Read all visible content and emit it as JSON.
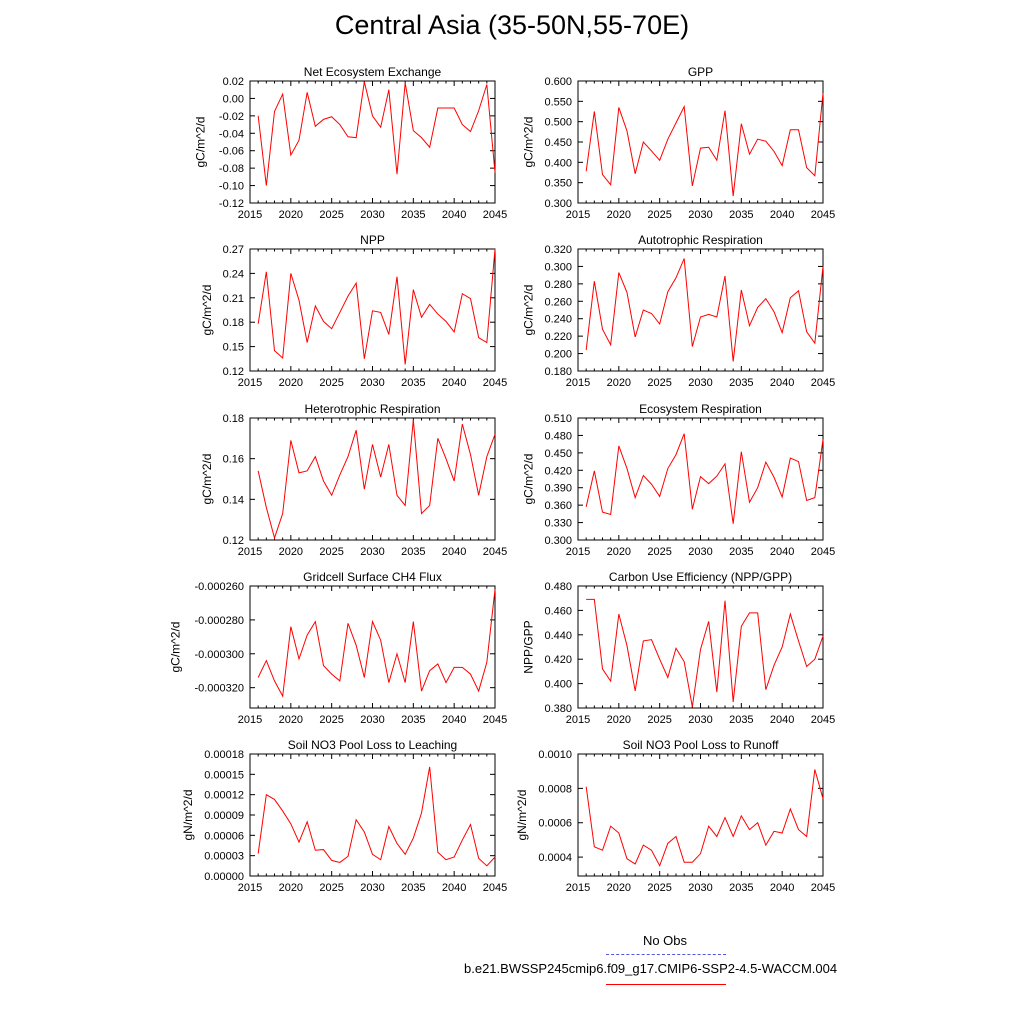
{
  "title": "Central Asia (35-50N,55-70E)",
  "legend": {
    "obs_label": "No Obs",
    "obs_color": "#5555dd",
    "case_label": "b.e21.BWSSP245cmip6.f09_g17.CMIP6-SSP2-4.5-WACCM.004",
    "case_color": "#ff0000"
  },
  "chart_data": [
    {
      "type": "line",
      "title": "Net Ecosystem Exchange",
      "ylabel": "gC/m^2/d",
      "xlim": [
        2015,
        2045
      ],
      "ylim": [
        -0.12,
        0.02
      ],
      "xticks": [
        2015,
        2020,
        2025,
        2030,
        2035,
        2040,
        2045
      ],
      "yticks": [
        -0.12,
        -0.1,
        -0.08,
        -0.06,
        -0.04,
        -0.02,
        0.0,
        0.02
      ],
      "ytick_labels": [
        "-0.12",
        "-0.10",
        "-0.08",
        "-0.06",
        "-0.04",
        "-0.02",
        "0.00",
        "0.02"
      ],
      "x": [
        2016,
        2017,
        2018,
        2019,
        2020,
        2021,
        2022,
        2023,
        2024,
        2025,
        2026,
        2027,
        2028,
        2029,
        2030,
        2031,
        2032,
        2033,
        2034,
        2035,
        2036,
        2037,
        2038,
        2039,
        2040,
        2041,
        2042,
        2043,
        2044,
        2045
      ],
      "y": [
        -0.02,
        -0.1,
        -0.015,
        0.005,
        -0.065,
        -0.048,
        0.007,
        -0.032,
        -0.024,
        -0.021,
        -0.03,
        -0.044,
        -0.045,
        0.019,
        -0.02,
        -0.033,
        0.01,
        -0.087,
        0.018,
        -0.037,
        -0.045,
        -0.056,
        -0.011,
        -0.011,
        -0.011,
        -0.03,
        -0.038,
        -0.014,
        0.016,
        -0.085
      ],
      "color": "#ff0000"
    },
    {
      "type": "line",
      "title": "GPP",
      "ylabel": "gC/m^2/d",
      "xlim": [
        2015,
        2045
      ],
      "ylim": [
        0.3,
        0.6
      ],
      "xticks": [
        2015,
        2020,
        2025,
        2030,
        2035,
        2040,
        2045
      ],
      "yticks": [
        0.3,
        0.35,
        0.4,
        0.45,
        0.5,
        0.55,
        0.6
      ],
      "ytick_labels": [
        "0.300",
        "0.350",
        "0.400",
        "0.450",
        "0.500",
        "0.550",
        "0.600"
      ],
      "x": [
        2016,
        2017,
        2018,
        2019,
        2020,
        2021,
        2022,
        2023,
        2024,
        2025,
        2026,
        2027,
        2028,
        2029,
        2030,
        2031,
        2032,
        2033,
        2034,
        2035,
        2036,
        2037,
        2038,
        2039,
        2040,
        2041,
        2042,
        2043,
        2044,
        2045
      ],
      "y": [
        0.378,
        0.525,
        0.37,
        0.345,
        0.535,
        0.477,
        0.372,
        0.45,
        0.428,
        0.405,
        0.457,
        0.497,
        0.537,
        0.342,
        0.435,
        0.437,
        0.405,
        0.527,
        0.317,
        0.495,
        0.42,
        0.457,
        0.452,
        0.427,
        0.392,
        0.48,
        0.48,
        0.387,
        0.367,
        0.57
      ],
      "color": "#ff0000"
    },
    {
      "type": "line",
      "title": "NPP",
      "ylabel": "gC/m^2/d",
      "xlim": [
        2015,
        2045
      ],
      "ylim": [
        0.12,
        0.27
      ],
      "xticks": [
        2015,
        2020,
        2025,
        2030,
        2035,
        2040,
        2045
      ],
      "yticks": [
        0.12,
        0.15,
        0.18,
        0.21,
        0.24,
        0.27
      ],
      "ytick_labels": [
        "0.12",
        "0.15",
        "0.18",
        "0.21",
        "0.24",
        "0.27"
      ],
      "x": [
        2016,
        2017,
        2018,
        2019,
        2020,
        2021,
        2022,
        2023,
        2024,
        2025,
        2026,
        2027,
        2028,
        2029,
        2030,
        2031,
        2032,
        2033,
        2034,
        2035,
        2036,
        2037,
        2038,
        2039,
        2040,
        2041,
        2042,
        2043,
        2044,
        2045
      ],
      "y": [
        0.178,
        0.242,
        0.145,
        0.136,
        0.24,
        0.207,
        0.155,
        0.2,
        0.181,
        0.172,
        0.192,
        0.212,
        0.228,
        0.135,
        0.194,
        0.192,
        0.165,
        0.236,
        0.128,
        0.22,
        0.186,
        0.202,
        0.19,
        0.181,
        0.168,
        0.215,
        0.209,
        0.161,
        0.155,
        0.27
      ],
      "color": "#ff0000"
    },
    {
      "type": "line",
      "title": "Autotrophic Respiration",
      "ylabel": "gC/m^2/d",
      "xlim": [
        2015,
        2045
      ],
      "ylim": [
        0.18,
        0.32
      ],
      "xticks": [
        2015,
        2020,
        2025,
        2030,
        2035,
        2040,
        2045
      ],
      "yticks": [
        0.18,
        0.2,
        0.22,
        0.24,
        0.26,
        0.28,
        0.3,
        0.32
      ],
      "ytick_labels": [
        "0.180",
        "0.200",
        "0.220",
        "0.240",
        "0.260",
        "0.280",
        "0.300",
        "0.320"
      ],
      "x": [
        2016,
        2017,
        2018,
        2019,
        2020,
        2021,
        2022,
        2023,
        2024,
        2025,
        2026,
        2027,
        2028,
        2029,
        2030,
        2031,
        2032,
        2033,
        2034,
        2035,
        2036,
        2037,
        2038,
        2039,
        2040,
        2041,
        2042,
        2043,
        2044,
        2045
      ],
      "y": [
        0.204,
        0.283,
        0.228,
        0.21,
        0.293,
        0.27,
        0.219,
        0.25,
        0.246,
        0.234,
        0.271,
        0.287,
        0.309,
        0.208,
        0.242,
        0.245,
        0.242,
        0.289,
        0.191,
        0.273,
        0.232,
        0.253,
        0.263,
        0.248,
        0.224,
        0.264,
        0.272,
        0.225,
        0.212,
        0.3
      ],
      "color": "#ff0000"
    },
    {
      "type": "line",
      "title": "Heterotrophic Respiration",
      "ylabel": "gC/m^2/d",
      "xlim": [
        2015,
        2045
      ],
      "ylim": [
        0.12,
        0.18
      ],
      "xticks": [
        2015,
        2020,
        2025,
        2030,
        2035,
        2040,
        2045
      ],
      "yticks": [
        0.12,
        0.14,
        0.16,
        0.18
      ],
      "ytick_labels": [
        "0.12",
        "0.14",
        "0.16",
        "0.18"
      ],
      "x": [
        2016,
        2017,
        2018,
        2019,
        2020,
        2021,
        2022,
        2023,
        2024,
        2025,
        2026,
        2027,
        2028,
        2029,
        2030,
        2031,
        2032,
        2033,
        2034,
        2035,
        2036,
        2037,
        2038,
        2039,
        2040,
        2041,
        2042,
        2043,
        2044,
        2045
      ],
      "y": [
        0.154,
        0.136,
        0.121,
        0.133,
        0.169,
        0.153,
        0.154,
        0.161,
        0.149,
        0.142,
        0.152,
        0.161,
        0.174,
        0.145,
        0.167,
        0.151,
        0.167,
        0.142,
        0.137,
        0.179,
        0.133,
        0.137,
        0.17,
        0.16,
        0.149,
        0.177,
        0.162,
        0.142,
        0.161,
        0.172
      ],
      "color": "#ff0000"
    },
    {
      "type": "line",
      "title": "Ecosystem Respiration",
      "ylabel": "gC/m^2/d",
      "xlim": [
        2015,
        2045
      ],
      "ylim": [
        0.3,
        0.51
      ],
      "xticks": [
        2015,
        2020,
        2025,
        2030,
        2035,
        2040,
        2045
      ],
      "yticks": [
        0.3,
        0.33,
        0.36,
        0.39,
        0.42,
        0.45,
        0.48,
        0.51
      ],
      "ytick_labels": [
        "0.300",
        "0.330",
        "0.360",
        "0.390",
        "0.420",
        "0.450",
        "0.480",
        "0.510"
      ],
      "x": [
        2016,
        2017,
        2018,
        2019,
        2020,
        2021,
        2022,
        2023,
        2024,
        2025,
        2026,
        2027,
        2028,
        2029,
        2030,
        2031,
        2032,
        2033,
        2034,
        2035,
        2036,
        2037,
        2038,
        2039,
        2040,
        2041,
        2042,
        2043,
        2044,
        2045
      ],
      "y": [
        0.357,
        0.419,
        0.348,
        0.344,
        0.462,
        0.423,
        0.373,
        0.411,
        0.396,
        0.375,
        0.423,
        0.447,
        0.483,
        0.353,
        0.409,
        0.397,
        0.41,
        0.431,
        0.328,
        0.452,
        0.365,
        0.39,
        0.434,
        0.408,
        0.374,
        0.441,
        0.435,
        0.368,
        0.373,
        0.473
      ],
      "color": "#ff0000"
    },
    {
      "type": "line",
      "title": "Gridcell Surface CH4 Flux",
      "ylabel": "gC/m^2/d",
      "xlim": [
        2015,
        2045
      ],
      "ylim": [
        -0.000332,
        -0.00026
      ],
      "xticks": [
        2015,
        2020,
        2025,
        2030,
        2035,
        2040,
        2045
      ],
      "yticks": [
        -0.00032,
        -0.0003,
        -0.00028,
        -0.00026
      ],
      "ytick_labels": [
        "-0.000320",
        "-0.000300",
        "-0.000280",
        "-0.000260"
      ],
      "x": [
        2016,
        2017,
        2018,
        2019,
        2020,
        2021,
        2022,
        2023,
        2024,
        2025,
        2026,
        2027,
        2028,
        2029,
        2030,
        2031,
        2032,
        2033,
        2034,
        2035,
        2036,
        2037,
        2038,
        2039,
        2040,
        2041,
        2042,
        2043,
        2044,
        2045
      ],
      "y": [
        -0.000314,
        -0.000304,
        -0.000316,
        -0.000325,
        -0.000284,
        -0.000303,
        -0.000289,
        -0.000281,
        -0.000307,
        -0.000312,
        -0.000316,
        -0.000282,
        -0.000295,
        -0.000314,
        -0.000281,
        -0.000292,
        -0.000317,
        -0.0003,
        -0.000317,
        -0.000281,
        -0.000322,
        -0.00031,
        -0.000306,
        -0.000317,
        -0.000308,
        -0.000308,
        -0.000312,
        -0.000322,
        -0.000305,
        -0.000262
      ],
      "color": "#ff0000"
    },
    {
      "type": "line",
      "title": "Carbon Use Efficiency (NPP/GPP)",
      "ylabel": "NPP/GPP",
      "xlim": [
        2015,
        2045
      ],
      "ylim": [
        0.38,
        0.48
      ],
      "xticks": [
        2015,
        2020,
        2025,
        2030,
        2035,
        2040,
        2045
      ],
      "yticks": [
        0.38,
        0.4,
        0.42,
        0.44,
        0.46,
        0.48
      ],
      "ytick_labels": [
        "0.380",
        "0.400",
        "0.420",
        "0.440",
        "0.460",
        "0.480"
      ],
      "x": [
        2016,
        2017,
        2018,
        2019,
        2020,
        2021,
        2022,
        2023,
        2024,
        2025,
        2026,
        2027,
        2028,
        2029,
        2030,
        2031,
        2032,
        2033,
        2034,
        2035,
        2036,
        2037,
        2038,
        2039,
        2040,
        2041,
        2042,
        2043,
        2044,
        2045
      ],
      "y": [
        0.469,
        0.469,
        0.412,
        0.402,
        0.457,
        0.431,
        0.394,
        0.435,
        0.436,
        0.42,
        0.405,
        0.429,
        0.418,
        0.381,
        0.428,
        0.451,
        0.393,
        0.468,
        0.385,
        0.447,
        0.458,
        0.458,
        0.395,
        0.415,
        0.43,
        0.457,
        0.435,
        0.414,
        0.42,
        0.439
      ],
      "color": "#ff0000"
    },
    {
      "type": "line",
      "title": "Soil NO3 Pool Loss to Leaching",
      "ylabel": "gN/m^2/d",
      "xlim": [
        2015,
        2045
      ],
      "ylim": [
        0.0,
        0.00018
      ],
      "xticks": [
        2015,
        2020,
        2025,
        2030,
        2035,
        2040,
        2045
      ],
      "yticks": [
        0.0,
        3e-05,
        6e-05,
        9e-05,
        0.00012,
        0.00015,
        0.00018
      ],
      "ytick_labels": [
        "0.00000",
        "0.00003",
        "0.00006",
        "0.00009",
        "0.00012",
        "0.00015",
        "0.00018"
      ],
      "x": [
        2016,
        2017,
        2018,
        2019,
        2020,
        2021,
        2022,
        2023,
        2024,
        2025,
        2026,
        2027,
        2028,
        2029,
        2030,
        2031,
        2032,
        2033,
        2034,
        2035,
        2036,
        2037,
        2038,
        2039,
        2040,
        2041,
        2042,
        2043,
        2044,
        2045
      ],
      "y": [
        3.3e-05,
        0.00012,
        0.000113,
        9.6e-05,
        7.7e-05,
        5e-05,
        8e-05,
        3.8e-05,
        3.9e-05,
        2.3e-05,
        2e-05,
        2.9e-05,
        8.3e-05,
        6.5e-05,
        3.2e-05,
        2.4e-05,
        7.3e-05,
        4.8e-05,
        3.2e-05,
        5.6e-05,
        9.3e-05,
        0.000161,
        3.5e-05,
        2.4e-05,
        2.8e-05,
        5.3e-05,
        7.6e-05,
        2.6e-05,
        1.5e-05,
        2.8e-05
      ],
      "color": "#ff0000"
    },
    {
      "type": "line",
      "title": "Soil NO3 Pool Loss to Runoff",
      "ylabel": "gN/m^2/d",
      "xlim": [
        2015,
        2045
      ],
      "ylim": [
        0.00029,
        0.001
      ],
      "xticks": [
        2015,
        2020,
        2025,
        2030,
        2035,
        2040,
        2045
      ],
      "yticks": [
        0.0004,
        0.0006,
        0.0008,
        0.001
      ],
      "ytick_labels": [
        "0.0004",
        "0.0006",
        "0.0008",
        "0.0010"
      ],
      "x": [
        2016,
        2017,
        2018,
        2019,
        2020,
        2021,
        2022,
        2023,
        2024,
        2025,
        2026,
        2027,
        2028,
        2029,
        2030,
        2031,
        2032,
        2033,
        2034,
        2035,
        2036,
        2037,
        2038,
        2039,
        2040,
        2041,
        2042,
        2043,
        2044,
        2045
      ],
      "y": [
        0.00081,
        0.00046,
        0.00044,
        0.00058,
        0.00054,
        0.00039,
        0.00036,
        0.00047,
        0.00044,
        0.00035,
        0.00048,
        0.00052,
        0.00037,
        0.00037,
        0.00042,
        0.00058,
        0.00052,
        0.00063,
        0.00052,
        0.00064,
        0.00056,
        0.0006,
        0.00047,
        0.00055,
        0.00054,
        0.00068,
        0.00056,
        0.00052,
        0.00091,
        0.00074
      ],
      "color": "#ff0000"
    }
  ]
}
